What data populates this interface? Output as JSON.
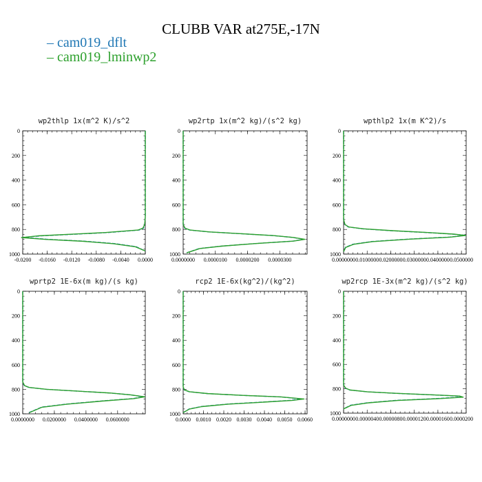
{
  "title": "CLUBB VAR at275E,-17N",
  "legend": [
    {
      "name": "cam019_dflt",
      "color": "#1f77b4"
    },
    {
      "name": "cam019_lminwp2",
      "color": "#2ca02c"
    }
  ],
  "chart_data": [
    {
      "type": "line",
      "title": "wp2thlp  1x(m^2 K)/s^2",
      "xlim": [
        -0.02,
        0.0
      ],
      "ylim": [
        1000,
        0
      ],
      "yticks": [
        "0",
        "200",
        "400",
        "600",
        "800",
        "1000"
      ],
      "xticks": [
        "-0.0200",
        "-0.0160",
        "-0.0120",
        "-0.0080",
        "-0.0040",
        "0.0000"
      ],
      "xtick_values": [
        -0.02,
        -0.016,
        -0.012,
        -0.008,
        -0.004,
        0.0
      ],
      "series": [
        {
          "color": "#1f77b4",
          "x": [
            0.0,
            0.0,
            0.0,
            -0.0001,
            -0.0003,
            -0.001,
            -0.006,
            -0.012,
            -0.017,
            -0.02,
            -0.016,
            -0.01,
            -0.005,
            -0.0015,
            0.0
          ],
          "y": [
            0,
            400,
            700,
            760,
            790,
            805,
            825,
            840,
            852,
            865,
            880,
            895,
            915,
            940,
            975
          ]
        },
        {
          "color": "#2ca02c",
          "x": [
            0.0,
            0.0,
            0.0,
            -0.0001,
            -0.0004,
            -0.0012,
            -0.0065,
            -0.0125,
            -0.0175,
            -0.0202,
            -0.0162,
            -0.0102,
            -0.0052,
            -0.0016,
            0.0
          ],
          "y": [
            0,
            400,
            700,
            760,
            790,
            805,
            825,
            840,
            852,
            866,
            881,
            896,
            916,
            941,
            975
          ]
        }
      ]
    },
    {
      "type": "line",
      "title": "wp2rtp  1x(m^2 kg)/(s^2 kg)",
      "xlim": [
        0.0,
        3.85e-05
      ],
      "ylim": [
        1000,
        0
      ],
      "yticks": [
        "0",
        "200",
        "400",
        "600",
        "800",
        "1000"
      ],
      "xticks": [
        "0.0000000",
        "0.0000100",
        "0.0000200",
        "0.0000300"
      ],
      "xtick_values": [
        0.0,
        1e-05,
        2e-05,
        3e-05
      ],
      "series": [
        {
          "color": "#1f77b4",
          "x": [
            0.0,
            0.0,
            5e-07,
            2e-06,
            8e-06,
            1.8e-05,
            2.8e-05,
            3.4e-05,
            3.75e-05,
            3.4e-05,
            2.2e-05,
            1.2e-05,
            5e-06,
            1e-06
          ],
          "y": [
            0,
            760,
            790,
            805,
            820,
            835,
            850,
            865,
            880,
            895,
            915,
            935,
            955,
            990
          ]
        },
        {
          "color": "#2ca02c",
          "x": [
            0.0,
            0.0,
            6e-07,
            2.2e-06,
            8.2e-06,
            1.82e-05,
            2.82e-05,
            3.42e-05,
            3.78e-05,
            3.42e-05,
            2.22e-05,
            1.22e-05,
            5.2e-06,
            1.1e-06
          ],
          "y": [
            0,
            760,
            790,
            805,
            820,
            835,
            850,
            865,
            880,
            895,
            915,
            935,
            955,
            990
          ]
        }
      ]
    },
    {
      "type": "line",
      "title": "wpthlp2  1x(m K^2)/s",
      "xlim": [
        0.0,
        0.052
      ],
      "ylim": [
        1000,
        0
      ],
      "yticks": [
        "0",
        "200",
        "400",
        "600",
        "800",
        "1000"
      ],
      "xticks": [
        "0.0000000",
        "0.0100000",
        "0.0200000",
        "0.0300000",
        "0.0400000",
        "0.0500000"
      ],
      "xtick_values": [
        0.0,
        0.01,
        0.02,
        0.03,
        0.04,
        0.05
      ],
      "series": [
        {
          "color": "#1f77b4",
          "x": [
            0.0,
            0.0,
            0.0005,
            0.002,
            0.008,
            0.02,
            0.035,
            0.046,
            0.052,
            0.045,
            0.028,
            0.012,
            0.004,
            0.0008,
            0.0
          ],
          "y": [
            0,
            720,
            760,
            780,
            795,
            810,
            825,
            838,
            848,
            862,
            878,
            898,
            920,
            945,
            980
          ]
        },
        {
          "color": "#2ca02c",
          "x": [
            0.0,
            0.0,
            0.0006,
            0.0022,
            0.0085,
            0.0208,
            0.0358,
            0.0468,
            0.0518,
            0.0452,
            0.0282,
            0.0122,
            0.0042,
            0.0009,
            0.0
          ],
          "y": [
            0,
            720,
            760,
            780,
            795,
            810,
            825,
            838,
            849,
            863,
            879,
            899,
            921,
            946,
            980
          ]
        }
      ]
    },
    {
      "type": "line",
      "title": "wprtp2  1E-6x(m kg)/(s kg)",
      "xlim": [
        0.0,
        0.0775
      ],
      "ylim": [
        1000,
        0
      ],
      "yticks": [
        "0",
        "200",
        "400",
        "600",
        "800",
        "1000"
      ],
      "xticks": [
        "0.0000000",
        "0.0200000",
        "0.0400000",
        "0.0600000"
      ],
      "xtick_values": [
        0.0,
        0.02,
        0.04,
        0.06
      ],
      "series": [
        {
          "color": "#1f77b4",
          "x": [
            0.0,
            0.0,
            0.001,
            0.004,
            0.015,
            0.035,
            0.055,
            0.068,
            0.0765,
            0.07,
            0.05,
            0.028,
            0.012,
            0.004
          ],
          "y": [
            0,
            740,
            770,
            785,
            800,
            815,
            830,
            845,
            860,
            875,
            895,
            920,
            945,
            990
          ]
        },
        {
          "color": "#2ca02c",
          "x": [
            0.0,
            0.0,
            0.0012,
            0.0042,
            0.0152,
            0.0352,
            0.0552,
            0.0682,
            0.0772,
            0.0702,
            0.0502,
            0.0282,
            0.0122,
            0.0042
          ],
          "y": [
            0,
            740,
            770,
            785,
            800,
            815,
            830,
            845,
            861,
            876,
            896,
            921,
            946,
            990
          ]
        }
      ]
    },
    {
      "type": "line",
      "title": "rcp2  1E-6x(kg^2)/(kg^2)",
      "xlim": [
        0.0,
        0.0061
      ],
      "ylim": [
        1000,
        0
      ],
      "yticks": [
        "0",
        "200",
        "400",
        "600",
        "800",
        "1000"
      ],
      "xticks": [
        "0.0000",
        "0.0010",
        "0.0020",
        "0.0030",
        "0.0040",
        "0.0050",
        "0.0060"
      ],
      "xtick_values": [
        0.0,
        0.001,
        0.002,
        0.003,
        0.004,
        0.005,
        0.006
      ],
      "series": [
        {
          "color": "#1f77b4",
          "x": [
            0.0,
            0.0,
            5e-05,
            0.0003,
            0.0012,
            0.003,
            0.0048,
            0.0058,
            0.0053,
            0.0038,
            0.0022,
            0.0009,
            0.0003,
            0.0
          ],
          "y": [
            0,
            780,
            805,
            820,
            835,
            850,
            862,
            878,
            890,
            905,
            920,
            940,
            960,
            990
          ]
        },
        {
          "color": "#2ca02c",
          "x": [
            0.0,
            0.0,
            6e-05,
            0.00032,
            0.00122,
            0.00302,
            0.00482,
            0.00595,
            0.00535,
            0.00382,
            0.00222,
            0.00092,
            0.00031,
            0.0
          ],
          "y": [
            0,
            780,
            805,
            820,
            835,
            850,
            862,
            879,
            891,
            906,
            921,
            941,
            961,
            990
          ]
        }
      ]
    },
    {
      "type": "line",
      "title": "wp2rcp  1E-3x(m^2 kg)/(s^2 kg)",
      "xlim": [
        0.0,
        2.08e-05
      ],
      "ylim": [
        1000,
        0
      ],
      "yticks": [
        "0",
        "200",
        "400",
        "600",
        "800",
        "1000"
      ],
      "xticks": [
        "0.0000000",
        "0.0000040",
        "0.0000080",
        "0.0000120",
        "0.0000160",
        "0.0000200"
      ],
      "xtick_values": [
        0.0,
        4e-06,
        8e-06,
        1.2e-05,
        1.6e-05,
        2e-05
      ],
      "series": [
        {
          "color": "#1f77b4",
          "x": [
            0.0,
            0.0,
            3e-07,
            1e-06,
            4e-06,
            9e-06,
            1.5e-05,
            1.95e-05,
            2e-05,
            1.6e-05,
            9e-06,
            4e-06,
            1.2e-06,
            0.0
          ],
          "y": [
            0,
            770,
            795,
            810,
            825,
            838,
            850,
            860,
            868,
            880,
            895,
            915,
            935,
            965
          ]
        },
        {
          "color": "#2ca02c",
          "x": [
            0.0,
            0.0,
            3.5e-07,
            1.1e-06,
            4.1e-06,
            9.2e-06,
            1.52e-05,
            1.97e-05,
            2.03e-05,
            1.62e-05,
            9.2e-06,
            4.1e-06,
            1.3e-06,
            0.0
          ],
          "y": [
            0,
            770,
            795,
            810,
            825,
            838,
            850,
            860,
            869,
            881,
            896,
            916,
            936,
            965
          ]
        }
      ]
    }
  ]
}
